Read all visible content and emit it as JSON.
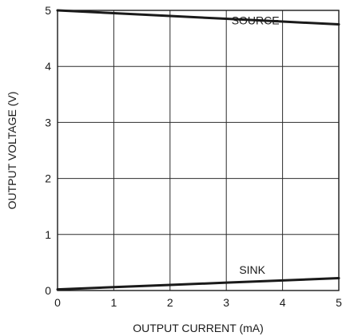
{
  "chart_data": {
    "type": "line",
    "title": "",
    "xlabel": "OUTPUT CURRENT (mA)",
    "ylabel": "OUTPUT VOLTAGE (V)",
    "xlim": [
      0,
      5
    ],
    "ylim": [
      0,
      5
    ],
    "x_ticks": [
      "0",
      "1",
      "2",
      "3",
      "4",
      "5"
    ],
    "y_ticks": [
      "0",
      "1",
      "2",
      "3",
      "4",
      "5"
    ],
    "grid": true,
    "series": [
      {
        "name": "SOURCE",
        "x": [
          0,
          1,
          2,
          3,
          4,
          5
        ],
        "y": [
          5.0,
          4.95,
          4.9,
          4.85,
          4.8,
          4.75
        ]
      },
      {
        "name": "SINK",
        "x": [
          0,
          1,
          2,
          3,
          4,
          5
        ],
        "y": [
          0.02,
          0.06,
          0.1,
          0.14,
          0.18,
          0.22
        ]
      }
    ],
    "colors": {
      "line": "#1a1a1a",
      "grid": "#2b2b2b"
    }
  }
}
